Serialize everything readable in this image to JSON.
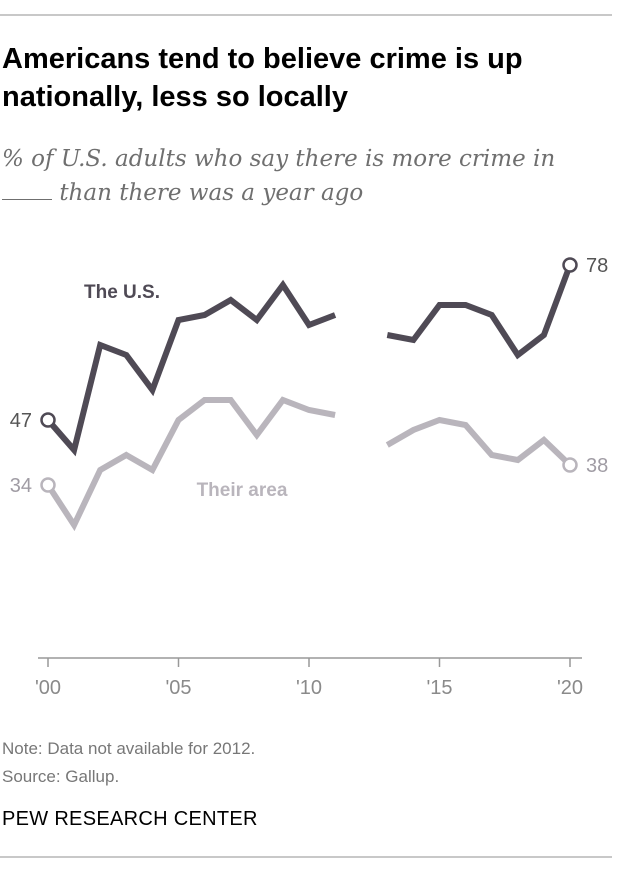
{
  "title": "Americans tend to believe crime is up nationally, less so locally",
  "subtitle_before": "% of U.S. adults who say there is more crime in",
  "subtitle_after": "than there was a year ago",
  "note": "Note: Data not available for 2012.",
  "source": "Source: Gallup.",
  "brand": "PEW RESEARCH CENTER",
  "colors": {
    "us": "#4f4a55",
    "area": "#b9b5bc",
    "axis": "#999999",
    "label": "#555555"
  },
  "chart_data": {
    "type": "line",
    "title": "Americans tend to believe crime is up nationally, less so locally",
    "xlabel": "",
    "ylabel": "",
    "xlim": [
      2000,
      2020
    ],
    "ylim": [
      0,
      100
    ],
    "x_ticks": [
      2000,
      2005,
      2010,
      2015,
      2020
    ],
    "x_tick_labels": [
      "'00",
      "'05",
      "'10",
      "'15",
      "'20"
    ],
    "series": [
      {
        "name": "The U.S.",
        "x": [
          2000,
          2001,
          2002,
          2003,
          2004,
          2005,
          2006,
          2007,
          2008,
          2009,
          2010,
          2011,
          2012,
          2013,
          2014,
          2015,
          2016,
          2017,
          2018,
          2019,
          2020
        ],
        "values": [
          47,
          41,
          62,
          60,
          53,
          67,
          68,
          71,
          67,
          74,
          66,
          68,
          null,
          64,
          63,
          70,
          70,
          68,
          60,
          64,
          78
        ],
        "start_label": "47",
        "end_label": "78"
      },
      {
        "name": "Their area",
        "x": [
          2000,
          2001,
          2002,
          2003,
          2004,
          2005,
          2006,
          2007,
          2008,
          2009,
          2010,
          2011,
          2012,
          2013,
          2014,
          2015,
          2016,
          2017,
          2018,
          2019,
          2020
        ],
        "values": [
          34,
          26,
          37,
          40,
          37,
          47,
          51,
          51,
          44,
          51,
          49,
          48,
          null,
          42,
          45,
          47,
          46,
          40,
          39,
          43,
          38
        ],
        "start_label": "34",
        "end_label": "38"
      }
    ],
    "annotations": [
      "Note: Data not available for 2012."
    ]
  }
}
